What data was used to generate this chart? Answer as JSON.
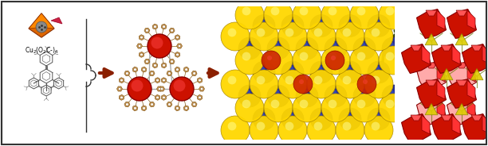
{
  "panel_bg": "#ffffff",
  "border_color": "#333333",
  "arrow_color": "#8B2000",
  "arrow_color_dark": "#1a3300",
  "cu_orange": "#cc5500",
  "cu_dark": "#8B2000",
  "cu_label": "Cu$_2$(O$_2$C-)$_4$",
  "ring_inner": "#cc1100",
  "ring_outer_face": "#d4a060",
  "ring_outer_edge": "#8B6020",
  "crystal_yellow": "#ffd700",
  "crystal_yellow_edge": "#aa8800",
  "crystal_blue": "#1a2288",
  "crystal_blue_edge": "#0a0a55",
  "crystal_red": "#cc2200",
  "poly_red": "#cc1100",
  "poly_red_top": "#ee3333",
  "poly_red_right": "#ff5555",
  "poly_pink": "#ffaaaa",
  "tet_yellow": "#ddcc00",
  "tet_edge": "#888800",
  "linker_color": "#555555",
  "brace_color": "#333333",
  "fig_width": 6.12,
  "fig_height": 1.84,
  "dpi": 100
}
